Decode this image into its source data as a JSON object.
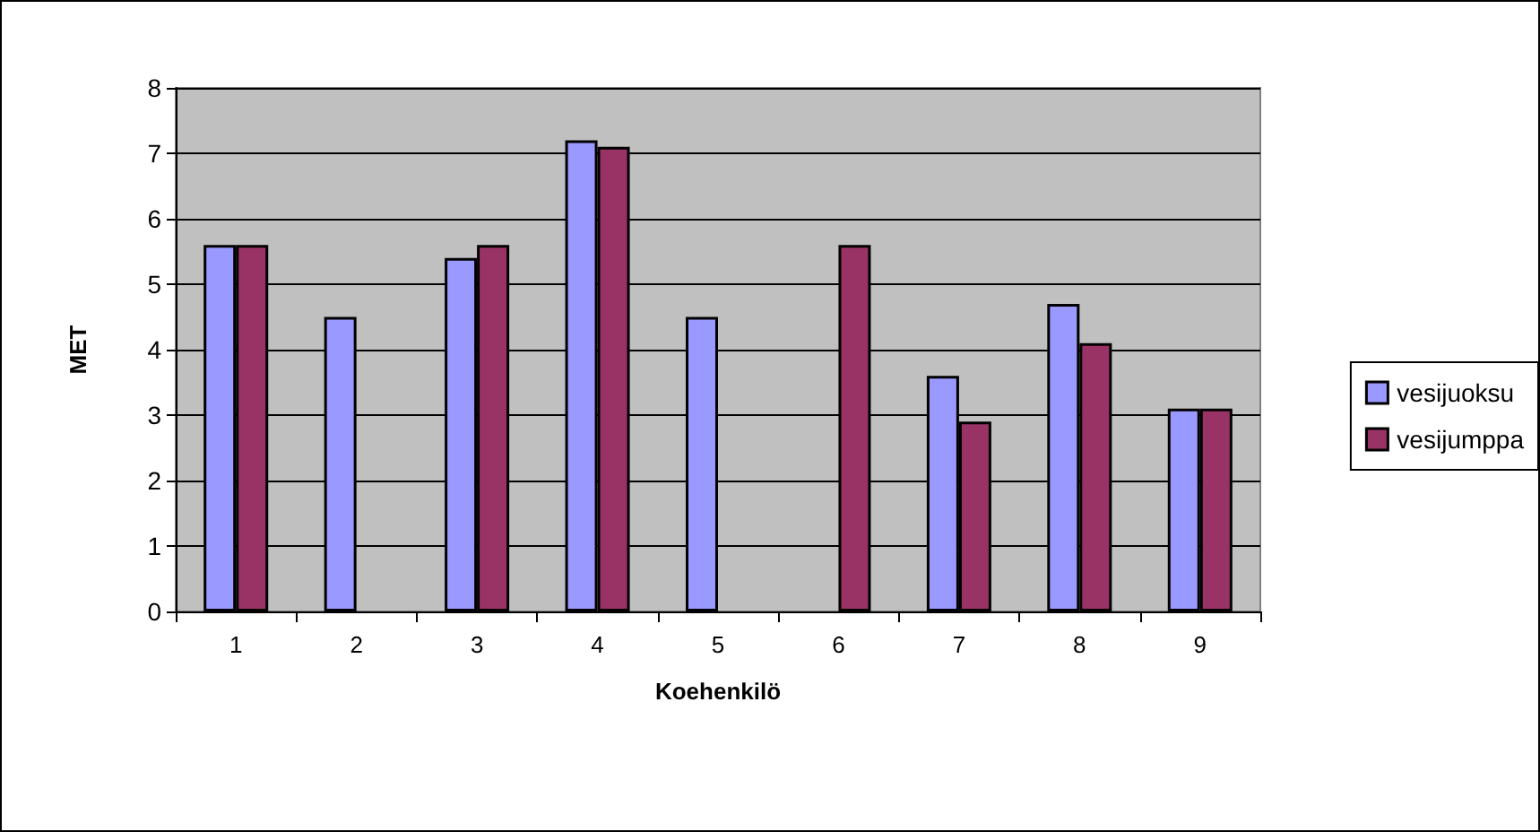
{
  "chart_data": {
    "type": "bar",
    "xlabel": "Koehenkilö",
    "ylabel": "MET",
    "categories": [
      "1",
      "2",
      "3",
      "4",
      "5",
      "6",
      "7",
      "8",
      "9"
    ],
    "series": [
      {
        "name": "vesijuoksu",
        "color": "#9999ff",
        "values": [
          5.6,
          4.5,
          5.4,
          7.2,
          4.5,
          null,
          3.6,
          4.7,
          3.1
        ]
      },
      {
        "name": "vesijumppa",
        "color": "#993366",
        "values": [
          5.6,
          null,
          5.6,
          7.1,
          null,
          5.6,
          2.9,
          4.1,
          3.1
        ]
      }
    ],
    "ylim": [
      0,
      8
    ],
    "yticks": [
      0,
      1,
      2,
      3,
      4,
      5,
      6,
      7,
      8
    ],
    "grid": "y",
    "legend": "right"
  }
}
